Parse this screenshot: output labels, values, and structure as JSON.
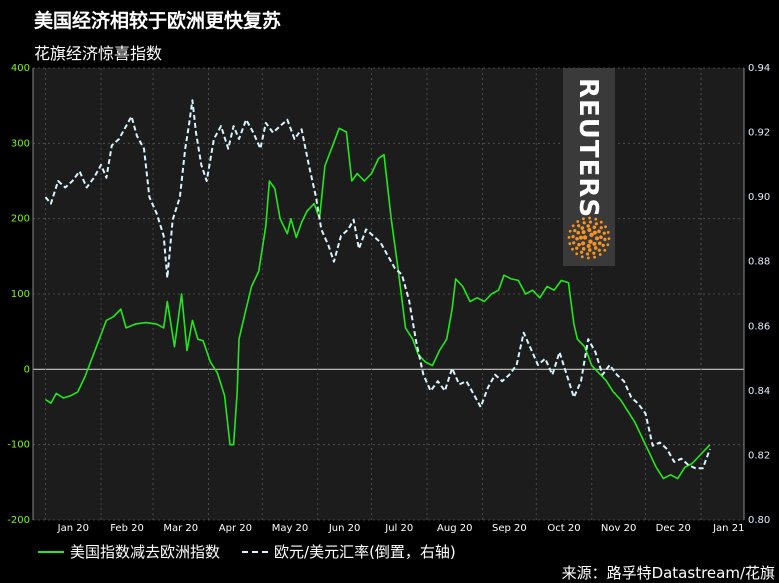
{
  "title": "美国经济相较于欧洲更快复苏",
  "subtitle": "花旗经济惊喜指数",
  "logo_text": "REUTERS",
  "legend": {
    "us_minus_eu": "美国指数减去欧洲指数",
    "eurusd": "欧元/美元汇率(倒置，右轴)"
  },
  "source": "来源：路孚特Datastream/花旗",
  "colors": {
    "background": "#000000",
    "plot": "#1c1c1c",
    "green": "#22e81a",
    "eurusd": "#d8f4ff",
    "left_axis": "#7CFC00"
  },
  "chart_data": {
    "type": "line",
    "x_axis": {
      "ticks": [
        "Jan 20",
        "Feb 20",
        "Mar 20",
        "Apr 20",
        "May 20",
        "Jun 20",
        "Jul 20",
        "Aug 20",
        "Sep 20",
        "Oct 20",
        "Nov 20",
        "Dec 20",
        "Jan 21"
      ],
      "range": [
        "2019-12-25",
        "2021-01-25"
      ]
    },
    "y_left": {
      "range": [
        -200,
        400
      ],
      "ticks": [
        -200,
        -100,
        0,
        100,
        200,
        300,
        400
      ]
    },
    "y_right": {
      "range": [
        0.94,
        0.8
      ],
      "inverted": true,
      "ticks": [
        "0.94",
        "0.92",
        "0.90",
        "0.88",
        "0.86",
        "0.84",
        "0.82",
        "0.80"
      ]
    },
    "grid": true,
    "legend_position": "bottom",
    "series": [
      {
        "name": "美国指数减去欧洲指数",
        "axis": "left",
        "style": "solid",
        "points": [
          [
            "2020-01-01",
            -40
          ],
          [
            "2020-01-04",
            -45
          ],
          [
            "2020-01-07",
            -32
          ],
          [
            "2020-01-11",
            -38
          ],
          [
            "2020-01-15",
            -35
          ],
          [
            "2020-01-19",
            -30
          ],
          [
            "2020-01-23",
            -10
          ],
          [
            "2020-01-27",
            15
          ],
          [
            "2020-01-31",
            40
          ],
          [
            "2020-02-04",
            65
          ],
          [
            "2020-02-08",
            70
          ],
          [
            "2020-02-12",
            80
          ],
          [
            "2020-02-15",
            55
          ],
          [
            "2020-02-20",
            60
          ],
          [
            "2020-02-26",
            62
          ],
          [
            "2020-03-03",
            60
          ],
          [
            "2020-03-07",
            55
          ],
          [
            "2020-03-09",
            90
          ],
          [
            "2020-03-13",
            30
          ],
          [
            "2020-03-17",
            100
          ],
          [
            "2020-03-20",
            25
          ],
          [
            "2020-03-23",
            65
          ],
          [
            "2020-03-26",
            40
          ],
          [
            "2020-03-29",
            38
          ],
          [
            "2020-04-02",
            10
          ],
          [
            "2020-04-06",
            -5
          ],
          [
            "2020-04-10",
            -35
          ],
          [
            "2020-04-13",
            -100
          ],
          [
            "2020-04-15",
            -100
          ],
          [
            "2020-04-17",
            -30
          ],
          [
            "2020-04-18",
            40
          ],
          [
            "2020-04-21",
            70
          ],
          [
            "2020-04-25",
            110
          ],
          [
            "2020-04-29",
            130
          ],
          [
            "2020-05-03",
            190
          ],
          [
            "2020-05-05",
            250
          ],
          [
            "2020-05-08",
            240
          ],
          [
            "2020-05-11",
            200
          ],
          [
            "2020-05-15",
            180
          ],
          [
            "2020-05-17",
            200
          ],
          [
            "2020-05-20",
            175
          ],
          [
            "2020-05-23",
            195
          ],
          [
            "2020-05-26",
            210
          ],
          [
            "2020-05-30",
            220
          ],
          [
            "2020-06-02",
            200
          ],
          [
            "2020-06-05",
            270
          ],
          [
            "2020-06-09",
            295
          ],
          [
            "2020-06-13",
            320
          ],
          [
            "2020-06-17",
            315
          ],
          [
            "2020-06-20",
            250
          ],
          [
            "2020-06-23",
            260
          ],
          [
            "2020-06-27",
            250
          ],
          [
            "2020-07-01",
            260
          ],
          [
            "2020-07-05",
            280
          ],
          [
            "2020-07-08",
            285
          ],
          [
            "2020-07-12",
            200
          ],
          [
            "2020-07-16",
            130
          ],
          [
            "2020-07-20",
            55
          ],
          [
            "2020-07-24",
            40
          ],
          [
            "2020-07-27",
            20
          ],
          [
            "2020-07-31",
            10
          ],
          [
            "2020-08-04",
            5
          ],
          [
            "2020-08-08",
            25
          ],
          [
            "2020-08-12",
            40
          ],
          [
            "2020-08-15",
            80
          ],
          [
            "2020-08-17",
            120
          ],
          [
            "2020-08-21",
            110
          ],
          [
            "2020-08-25",
            90
          ],
          [
            "2020-08-29",
            95
          ],
          [
            "2020-09-02",
            90
          ],
          [
            "2020-09-06",
            100
          ],
          [
            "2020-09-10",
            105
          ],
          [
            "2020-09-13",
            125
          ],
          [
            "2020-09-17",
            120
          ],
          [
            "2020-09-21",
            118
          ],
          [
            "2020-09-25",
            100
          ],
          [
            "2020-09-29",
            105
          ],
          [
            "2020-10-03",
            95
          ],
          [
            "2020-10-07",
            110
          ],
          [
            "2020-10-11",
            105
          ],
          [
            "2020-10-15",
            118
          ],
          [
            "2020-10-19",
            115
          ],
          [
            "2020-10-22",
            60
          ],
          [
            "2020-10-24",
            40
          ],
          [
            "2020-10-28",
            30
          ],
          [
            "2020-11-01",
            5
          ],
          [
            "2020-11-05",
            -5
          ],
          [
            "2020-11-09",
            -15
          ],
          [
            "2020-11-13",
            -30
          ],
          [
            "2020-11-17",
            -40
          ],
          [
            "2020-11-21",
            -55
          ],
          [
            "2020-11-25",
            -70
          ],
          [
            "2020-11-29",
            -90
          ],
          [
            "2020-12-03",
            -110
          ],
          [
            "2020-12-07",
            -130
          ],
          [
            "2020-12-11",
            -145
          ],
          [
            "2020-12-15",
            -140
          ],
          [
            "2020-12-19",
            -145
          ],
          [
            "2020-12-23",
            -130
          ],
          [
            "2020-12-27",
            -125
          ],
          [
            "2020-12-31",
            -115
          ],
          [
            "2021-01-04",
            -105
          ],
          [
            "2021-01-06",
            -100
          ]
        ]
      },
      {
        "name": "欧元/美元汇率(倒置，右轴)",
        "axis": "right",
        "style": "dashed",
        "points": [
          [
            "2020-01-01",
            0.9
          ],
          [
            "2020-01-04",
            0.898
          ],
          [
            "2020-01-08",
            0.905
          ],
          [
            "2020-01-12",
            0.903
          ],
          [
            "2020-01-16",
            0.905
          ],
          [
            "2020-01-20",
            0.908
          ],
          [
            "2020-01-24",
            0.903
          ],
          [
            "2020-01-28",
            0.906
          ],
          [
            "2020-02-01",
            0.91
          ],
          [
            "2020-02-04",
            0.906
          ],
          [
            "2020-02-07",
            0.916
          ],
          [
            "2020-02-11",
            0.918
          ],
          [
            "2020-02-15",
            0.922
          ],
          [
            "2020-02-18",
            0.925
          ],
          [
            "2020-02-21",
            0.919
          ],
          [
            "2020-02-25",
            0.915
          ],
          [
            "2020-02-28",
            0.9
          ],
          [
            "2020-03-03",
            0.895
          ],
          [
            "2020-03-07",
            0.888
          ],
          [
            "2020-03-09",
            0.875
          ],
          [
            "2020-03-12",
            0.893
          ],
          [
            "2020-03-16",
            0.9
          ],
          [
            "2020-03-19",
            0.915
          ],
          [
            "2020-03-21",
            0.922
          ],
          [
            "2020-03-23",
            0.93
          ],
          [
            "2020-03-25",
            0.92
          ],
          [
            "2020-03-28",
            0.91
          ],
          [
            "2020-03-31",
            0.905
          ],
          [
            "2020-04-04",
            0.918
          ],
          [
            "2020-04-08",
            0.922
          ],
          [
            "2020-04-12",
            0.915
          ],
          [
            "2020-04-15",
            0.922
          ],
          [
            "2020-04-18",
            0.918
          ],
          [
            "2020-04-22",
            0.924
          ],
          [
            "2020-04-26",
            0.92
          ],
          [
            "2020-04-30",
            0.915
          ],
          [
            "2020-05-03",
            0.923
          ],
          [
            "2020-05-07",
            0.92
          ],
          [
            "2020-05-11",
            0.922
          ],
          [
            "2020-05-15",
            0.924
          ],
          [
            "2020-05-19",
            0.918
          ],
          [
            "2020-05-23",
            0.921
          ],
          [
            "2020-05-27",
            0.91
          ],
          [
            "2020-05-31",
            0.9
          ],
          [
            "2020-06-03",
            0.89
          ],
          [
            "2020-06-07",
            0.885
          ],
          [
            "2020-06-10",
            0.88
          ],
          [
            "2020-06-14",
            0.888
          ],
          [
            "2020-06-18",
            0.89
          ],
          [
            "2020-06-21",
            0.893
          ],
          [
            "2020-06-24",
            0.884
          ],
          [
            "2020-06-28",
            0.89
          ],
          [
            "2020-07-02",
            0.888
          ],
          [
            "2020-07-06",
            0.886
          ],
          [
            "2020-07-10",
            0.882
          ],
          [
            "2020-07-14",
            0.878
          ],
          [
            "2020-07-18",
            0.876
          ],
          [
            "2020-07-22",
            0.868
          ],
          [
            "2020-07-26",
            0.855
          ],
          [
            "2020-07-30",
            0.845
          ],
          [
            "2020-08-03",
            0.84
          ],
          [
            "2020-08-07",
            0.843
          ],
          [
            "2020-08-11",
            0.84
          ],
          [
            "2020-08-15",
            0.847
          ],
          [
            "2020-08-19",
            0.842
          ],
          [
            "2020-08-23",
            0.843
          ],
          [
            "2020-08-27",
            0.839
          ],
          [
            "2020-08-31",
            0.835
          ],
          [
            "2020-09-04",
            0.841
          ],
          [
            "2020-09-08",
            0.845
          ],
          [
            "2020-09-12",
            0.843
          ],
          [
            "2020-09-16",
            0.845
          ],
          [
            "2020-09-20",
            0.848
          ],
          [
            "2020-09-24",
            0.858
          ],
          [
            "2020-09-28",
            0.853
          ],
          [
            "2020-10-02",
            0.848
          ],
          [
            "2020-10-06",
            0.85
          ],
          [
            "2020-10-10",
            0.845
          ],
          [
            "2020-10-14",
            0.852
          ],
          [
            "2020-10-18",
            0.845
          ],
          [
            "2020-10-22",
            0.838
          ],
          [
            "2020-10-26",
            0.843
          ],
          [
            "2020-10-30",
            0.856
          ],
          [
            "2020-11-03",
            0.852
          ],
          [
            "2020-11-07",
            0.845
          ],
          [
            "2020-11-11",
            0.848
          ],
          [
            "2020-11-15",
            0.845
          ],
          [
            "2020-11-19",
            0.843
          ],
          [
            "2020-11-23",
            0.838
          ],
          [
            "2020-11-27",
            0.836
          ],
          [
            "2020-12-01",
            0.833
          ],
          [
            "2020-12-05",
            0.823
          ],
          [
            "2020-12-09",
            0.824
          ],
          [
            "2020-12-13",
            0.822
          ],
          [
            "2020-12-17",
            0.818
          ],
          [
            "2020-12-21",
            0.819
          ],
          [
            "2020-12-25",
            0.817
          ],
          [
            "2020-12-29",
            0.816
          ],
          [
            "2021-01-02",
            0.816
          ],
          [
            "2021-01-06",
            0.822
          ]
        ]
      }
    ]
  }
}
